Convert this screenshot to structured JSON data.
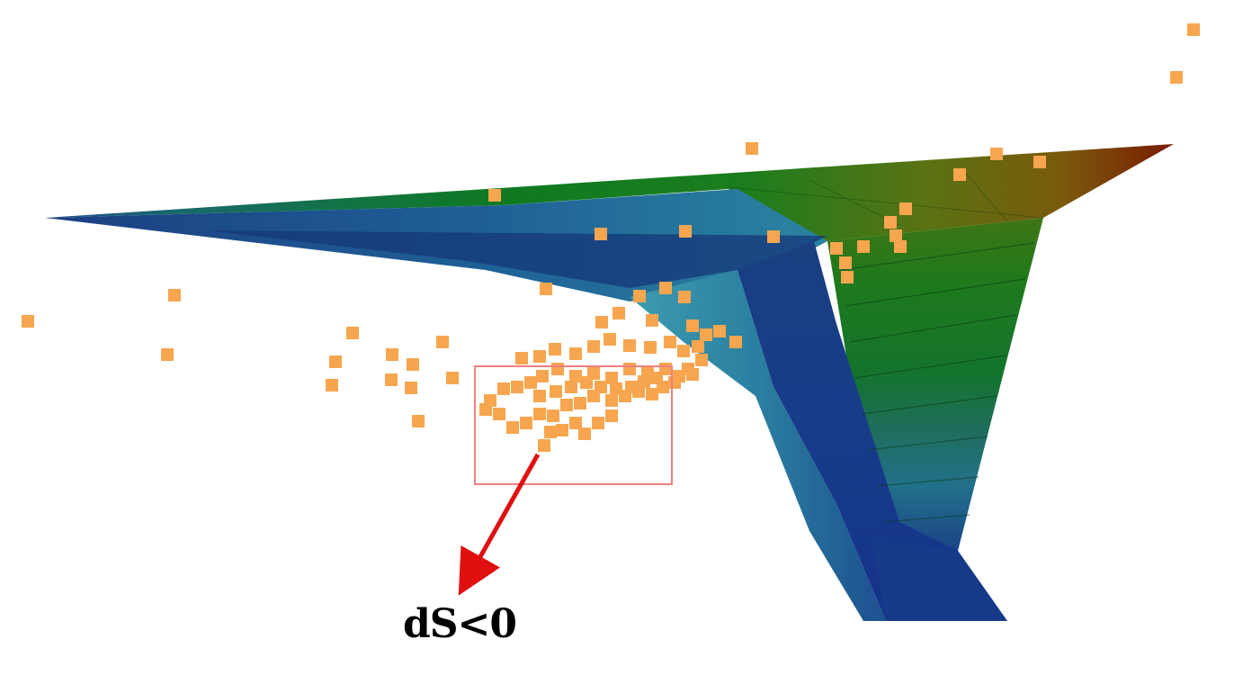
{
  "chart_data": {
    "type": "scatter",
    "title": "",
    "xlabel": "",
    "ylabel": "",
    "grid": false,
    "legend": "none",
    "description_kind": "3D surface with overlaid scatter points",
    "colors": {
      "points": "#f7a64f",
      "highlight_box": "#f08080",
      "arrow": "#e01010",
      "surface_low": "#12347a",
      "surface_mid_low": "#2d7f9a",
      "surface_mid": "#1a7a2a",
      "surface_mid_high": "#7a6e10",
      "surface_high": "#7a1f00"
    },
    "annotation": {
      "label": "dS<0"
    }
  }
}
